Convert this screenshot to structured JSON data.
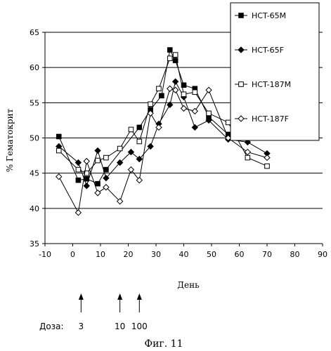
{
  "chart_data": {
    "type": "line",
    "title": "",
    "xlabel": "День",
    "ylabel": "% Гематокрит",
    "xlim": [
      -10,
      90
    ],
    "ylim": [
      35,
      65
    ],
    "xticks": [
      -10,
      0,
      10,
      20,
      30,
      40,
      50,
      60,
      70,
      80,
      90
    ],
    "yticks": [
      35,
      40,
      45,
      50,
      55,
      60,
      65
    ],
    "grid": "y-major",
    "legend_position": "top-right",
    "series": [
      {
        "name": "HCT-65M",
        "marker": "filled-square",
        "x": [
          -5,
          2,
          5,
          9,
          12,
          24,
          28,
          32,
          35,
          37,
          40,
          44,
          49,
          56,
          63,
          70
        ],
        "y": [
          50.2,
          44.0,
          44.2,
          43.5,
          45.5,
          51.5,
          54.0,
          56.0,
          62.5,
          61.0,
          57.5,
          57.0,
          53.0,
          50.5,
          51.3,
          51.0
        ]
      },
      {
        "name": "HCT-65F",
        "marker": "filled-diamond",
        "x": [
          -5,
          2,
          5,
          9,
          12,
          17,
          21,
          24,
          28,
          31,
          35,
          37,
          40,
          44,
          49,
          56,
          63,
          70
        ],
        "y": [
          48.8,
          46.5,
          43.2,
          48.2,
          44.3,
          46.5,
          48.0,
          47.0,
          48.8,
          52.0,
          54.7,
          58.0,
          55.8,
          51.5,
          52.5,
          49.8,
          49.4,
          47.8
        ]
      },
      {
        "name": "HCT-187M",
        "marker": "open-square",
        "x": [
          -5,
          2,
          5,
          9,
          12,
          17,
          21,
          24,
          28,
          31,
          35,
          37,
          40,
          44,
          49,
          56,
          63,
          70
        ],
        "y": [
          48.2,
          45.5,
          45.0,
          46.8,
          47.2,
          48.5,
          51.2,
          49.5,
          54.8,
          57.0,
          61.3,
          61.8,
          56.2,
          56.5,
          53.5,
          52.2,
          47.2,
          46.0
        ]
      },
      {
        "name": "HCT-187F",
        "marker": "open-diamond",
        "x": [
          -5,
          2,
          5,
          9,
          12,
          17,
          21,
          24,
          28,
          31,
          35,
          37,
          40,
          44,
          49,
          56,
          63,
          70
        ],
        "y": [
          44.5,
          39.4,
          46.7,
          42.2,
          43.0,
          41.0,
          45.5,
          44.0,
          53.5,
          51.5,
          57.0,
          56.8,
          54.2,
          53.8,
          56.8,
          50.0,
          48.0,
          47.2
        ]
      }
    ]
  },
  "dose": {
    "label": "Доза:",
    "values": [
      {
        "day": 3,
        "text": "3"
      },
      {
        "day": 17,
        "text": "10"
      },
      {
        "day": 24,
        "text": "100"
      }
    ]
  },
  "caption": "Фиг. 11"
}
